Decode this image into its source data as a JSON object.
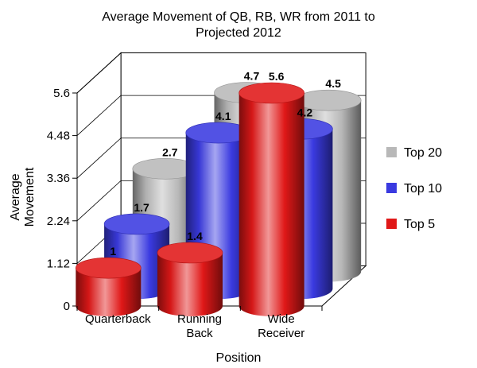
{
  "chart_data": {
    "type": "bar",
    "style": "3d-cylinder",
    "title_lines": [
      "Average Movement of QB, RB, WR from 2011 to",
      "Projected 2012"
    ],
    "xlabel": "Position",
    "ylabel_lines": [
      "Average",
      "Movement"
    ],
    "categories": [
      {
        "lines": [
          "Quarterback"
        ]
      },
      {
        "lines": [
          "Running",
          "Back"
        ]
      },
      {
        "lines": [
          "Wide",
          "Receiver"
        ]
      }
    ],
    "yticks": [
      "0",
      "1.12",
      "2.24",
      "3.36",
      "4.48",
      "5.6"
    ],
    "ylim": [
      0,
      5.6
    ],
    "series": [
      {
        "name": "Top 20",
        "color": "#b8b8b8",
        "values": [
          2.7,
          4.7,
          4.5
        ],
        "labels": [
          "2.7",
          "4.7",
          "4.5"
        ]
      },
      {
        "name": "Top 10",
        "color": "#3a3ae0",
        "values": [
          1.7,
          4.1,
          4.2
        ],
        "labels": [
          "1.7",
          "4.1",
          "4.2"
        ]
      },
      {
        "name": "Top 5",
        "color": "#e01818",
        "values": [
          1,
          1.4,
          5.6
        ],
        "labels": [
          "1",
          "1.4",
          "5.6"
        ]
      }
    ],
    "legend_position": "right",
    "grid": true
  }
}
